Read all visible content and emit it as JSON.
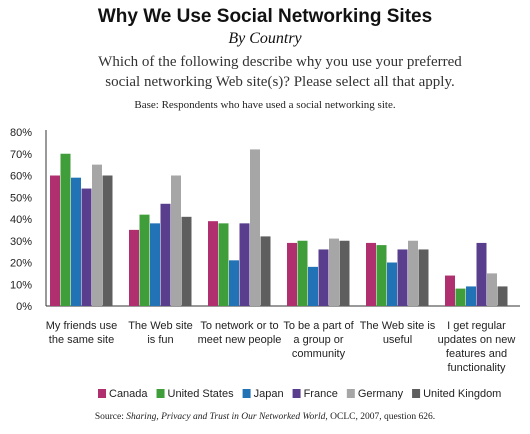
{
  "header": {
    "title": "Why We Use Social Networking Sites",
    "subtitle": "By Country",
    "question_line1": "Which of the following describe why you use your preferred",
    "question_line2": "social networking Web site(s)? Please select all that apply.",
    "base": "Base: Respondents who have used a social networking site."
  },
  "footer": {
    "source_prefix": "Source: ",
    "source_italic": "Sharing, Privacy and Trust in Our Networked World",
    "source_suffix": ", OCLC, 2007, question 626."
  },
  "chart_data": {
    "type": "bar",
    "ylim": [
      0,
      80
    ],
    "yticks": [
      "0%",
      "10%",
      "20%",
      "30%",
      "40%",
      "50%",
      "60%",
      "70%",
      "80%"
    ],
    "grid": false,
    "legend_position": "bottom",
    "categories": [
      [
        "My friends use",
        "the same site"
      ],
      [
        "The Web site",
        "is fun"
      ],
      [
        "To network or to",
        "meet new people"
      ],
      [
        "To be a part of",
        "a group or",
        "community"
      ],
      [
        "The Web site is",
        "useful"
      ],
      [
        "I get regular",
        "updates on new",
        "features and",
        "functionality"
      ]
    ],
    "series": [
      {
        "name": "Canada",
        "color": "#b0306f",
        "values": [
          60,
          35,
          39,
          29,
          29,
          14
        ]
      },
      {
        "name": "United States",
        "color": "#3f9e3a",
        "values": [
          70,
          42,
          38,
          30,
          28,
          8
        ]
      },
      {
        "name": "Japan",
        "color": "#2273b6",
        "values": [
          59,
          38,
          21,
          18,
          20,
          9
        ]
      },
      {
        "name": "France",
        "color": "#5a3e8e",
        "values": [
          54,
          47,
          38,
          26,
          26,
          29
        ]
      },
      {
        "name": "Germany",
        "color": "#a6a6a6",
        "values": [
          65,
          60,
          72,
          31,
          30,
          15
        ]
      },
      {
        "name": "United Kingdom",
        "color": "#5e5e5e",
        "values": [
          60,
          41,
          32,
          30,
          26,
          9
        ]
      }
    ]
  }
}
